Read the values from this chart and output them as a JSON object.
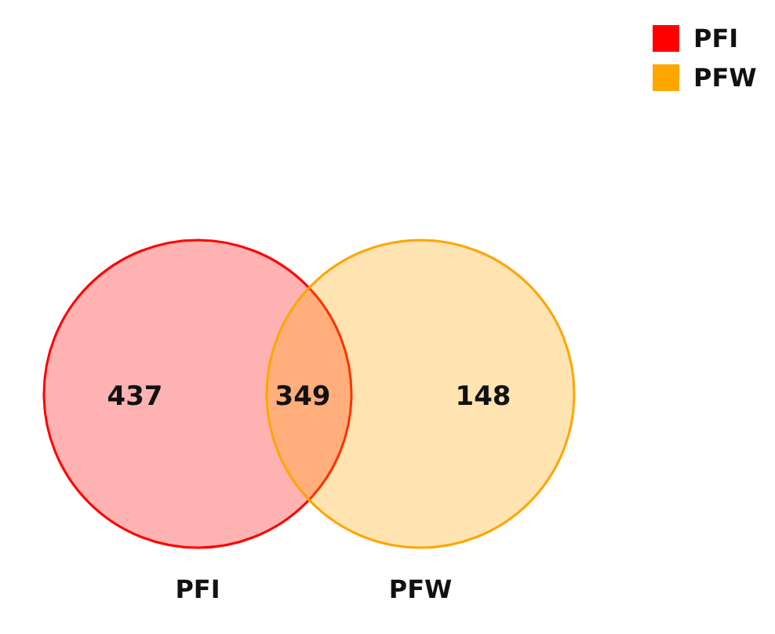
{
  "chart_data": {
    "type": "other",
    "categories": [
      "PFI",
      "PFW"
    ],
    "data_labels": true,
    "series": [
      {
        "name": "PFI",
        "color": "#ff0000",
        "values": [
          437,
          null
        ]
      },
      {
        "name": "PFW",
        "color": "#ffa500",
        "values": [
          null,
          148
        ]
      }
    ],
    "annotations": [
      "349"
    ],
    "legend": "top right"
  }
}
